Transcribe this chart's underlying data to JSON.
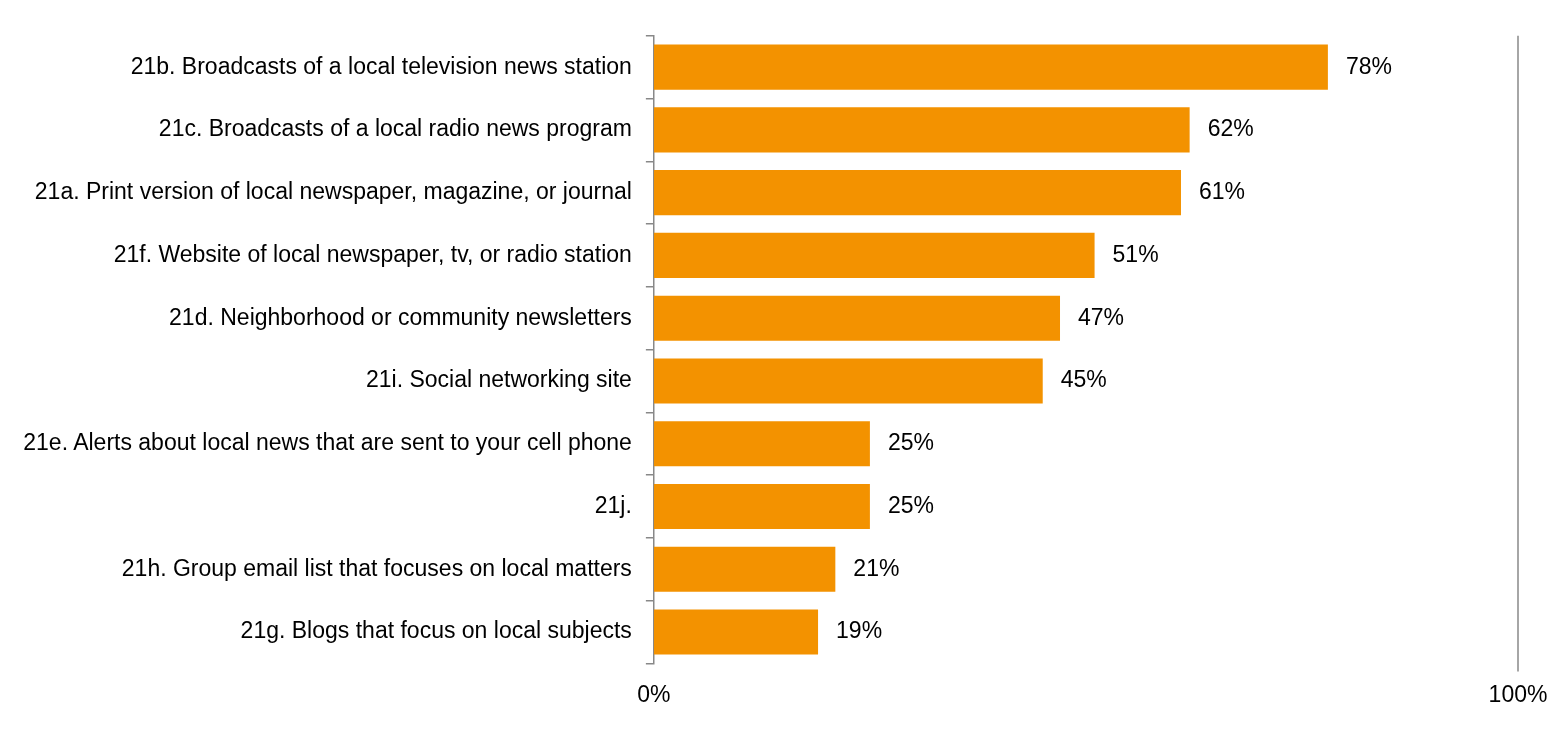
{
  "chart_data": {
    "type": "bar",
    "orientation": "horizontal",
    "categories": [
      "21b. Broadcasts of a local television news station",
      "21c. Broadcasts of a local radio news program",
      "21a. Print version of local newspaper, magazine, or journal",
      "21f. Website of local newspaper, tv, or radio station",
      "21d. Neighborhood or community newsletters",
      "21i. Social networking site",
      "21e. Alerts about local news that are sent to your cell phone",
      "21j.",
      "21h. Group email list that focuses on local matters",
      "21g. Blogs that focus on local subjects"
    ],
    "values": [
      78,
      62,
      61,
      51,
      47,
      45,
      25,
      25,
      21,
      19
    ],
    "value_labels": [
      "78%",
      "62%",
      "61%",
      "51%",
      "47%",
      "45%",
      "25%",
      "25%",
      "21%",
      "19%"
    ],
    "color": "#f39200",
    "xlim": [
      0,
      100
    ],
    "xticks": [
      {
        "value": 0,
        "label": "0%"
      },
      {
        "value": 100,
        "label": "100%"
      }
    ],
    "legend": false
  }
}
